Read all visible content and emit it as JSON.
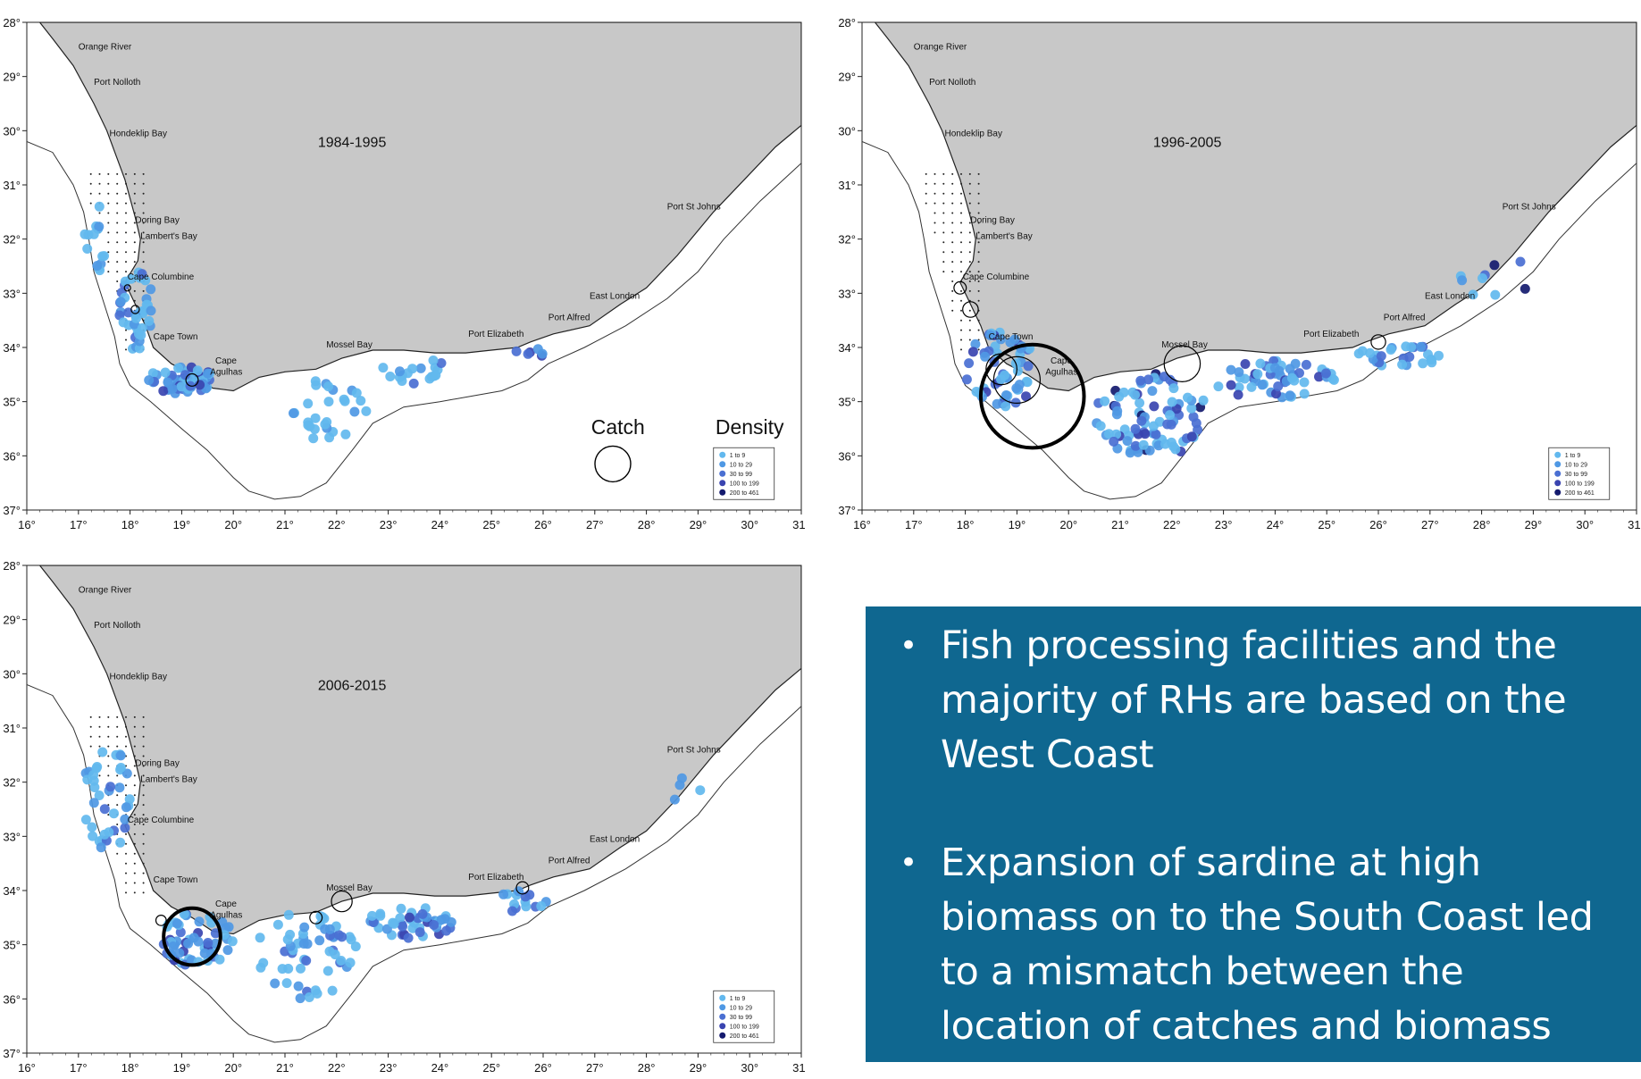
{
  "panels": [
    {
      "id": "panel-1984",
      "period": "1984-1995",
      "show_key": true
    },
    {
      "id": "panel-1996",
      "period": "1996-2005",
      "show_key": false
    },
    {
      "id": "panel-2006",
      "period": "2006-2015",
      "show_key": false
    }
  ],
  "axes": {
    "lon_labels": [
      "16°",
      "17°",
      "18°",
      "19°",
      "20°",
      "21°",
      "22°",
      "23°",
      "24°",
      "25°",
      "26°",
      "27°",
      "28°",
      "29°",
      "30°",
      "31°"
    ],
    "lat_labels": [
      "28°",
      "29°",
      "30°",
      "31°",
      "32°",
      "33°",
      "34°",
      "35°",
      "36°",
      "37°"
    ]
  },
  "places": [
    "Orange River",
    "Port Nolloth",
    "Hondeklip Bay",
    "Doring Bay",
    "Lambert's Bay",
    "Cape Columbine",
    "Cape Town",
    "Cape",
    "Agulhas",
    "Mossel Bay",
    "Port Elizabeth",
    "Port Alfred",
    "East London",
    "Port St Johns"
  ],
  "key": {
    "catch_label": "Catch",
    "density_label": "Density"
  },
  "legend": {
    "items": [
      "1 to 9",
      "10 to 29",
      "30 to 99",
      "100 to 199",
      "200 to 461"
    ],
    "colors": [
      "#62b8ee",
      "#4f98e4",
      "#4a6fd2",
      "#3a44b0",
      "#141a6e"
    ]
  },
  "colors": {
    "land": "#c8c8c8",
    "info_box": "#0f6790",
    "info_text": "#ffffff"
  },
  "info": {
    "bullets": [
      "Fish processing facilities and the majority of RHs are based on the West Coast",
      "Expansion of sardine at high biomass on to the South Coast led to a mismatch between the location of catches and biomass"
    ]
  }
}
